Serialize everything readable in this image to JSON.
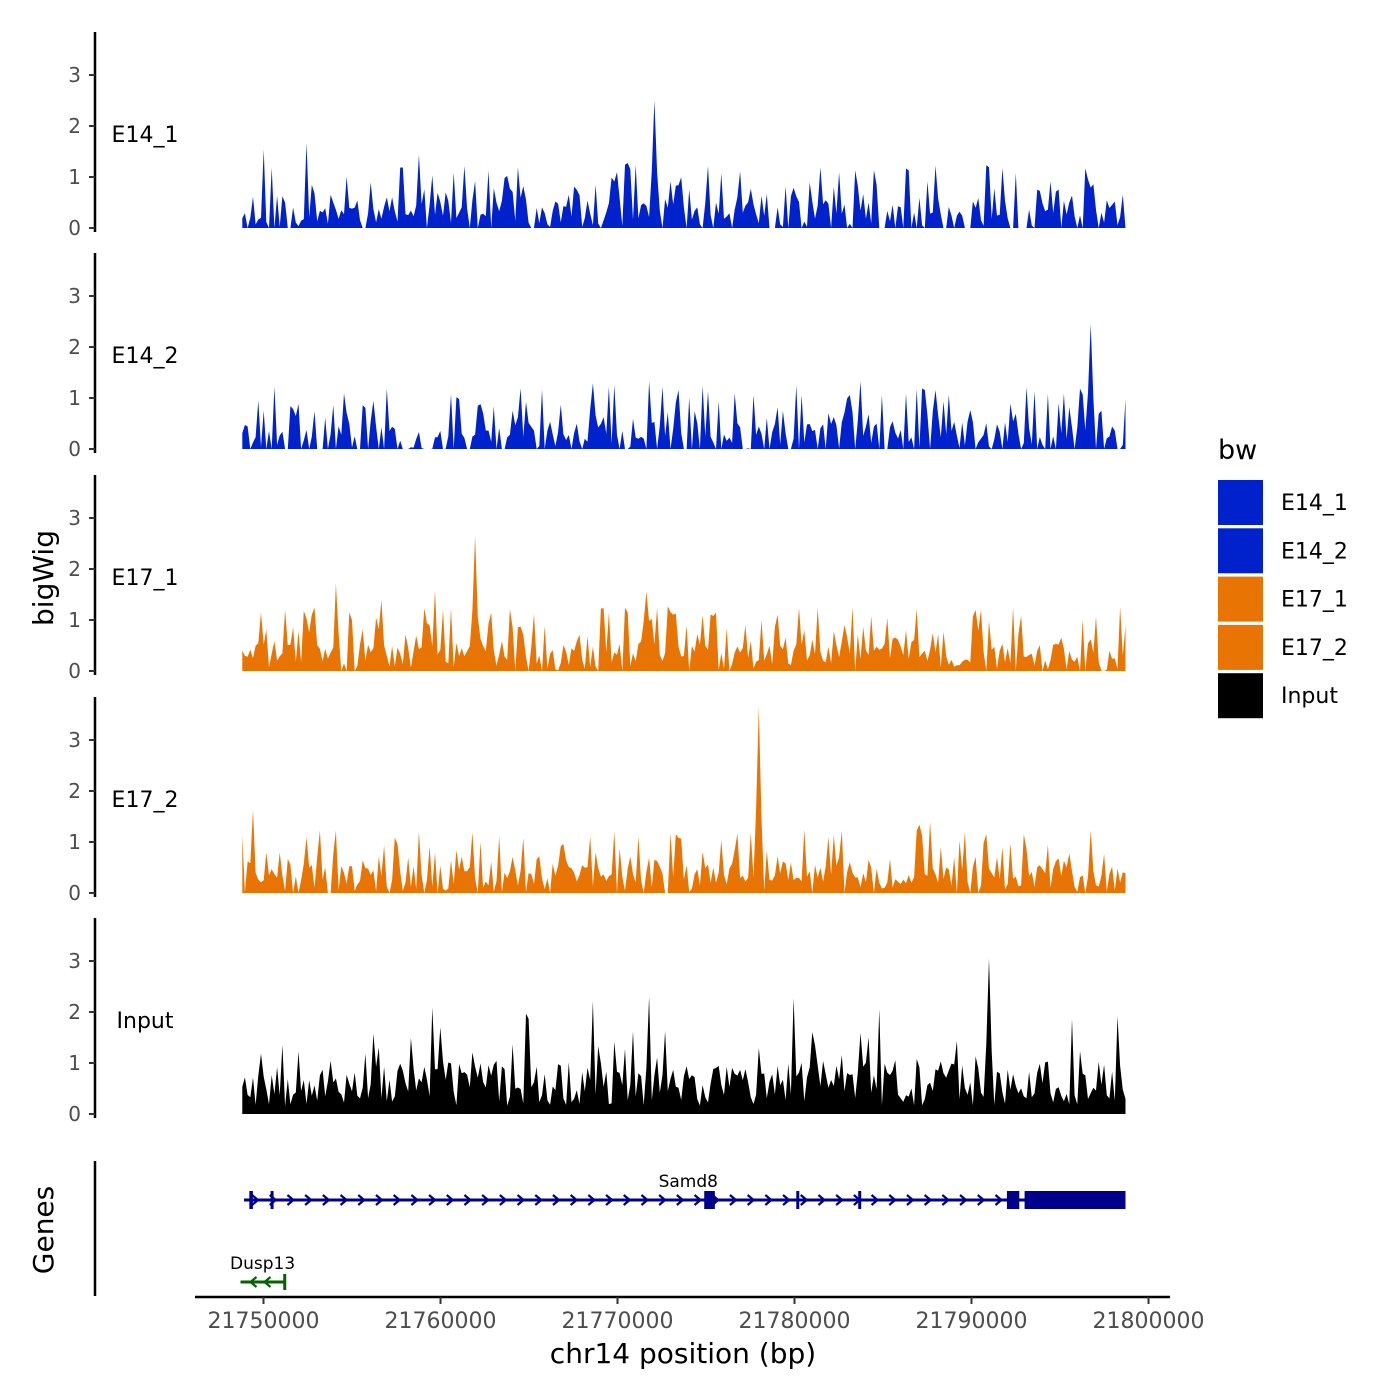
{
  "chart_data": {
    "type": "area",
    "title": "",
    "xlabel": "chr14 position (bp)",
    "ylabel": "bigWig",
    "gene_panel_label": "Genes",
    "x_range": [
      21746000,
      21801000
    ],
    "x_ticks": [
      21750000,
      21760000,
      21770000,
      21780000,
      21790000,
      21800000
    ],
    "x_tick_labels": [
      "21750000",
      "21760000",
      "21770000",
      "21780000",
      "21790000",
      "21800000"
    ],
    "y_range": [
      0,
      3.9
    ],
    "y_ticks": [
      0,
      1,
      2,
      3
    ],
    "y_tick_labels": [
      "0",
      "1",
      "2",
      "3"
    ],
    "data_x_range": [
      21748800,
      21798700
    ],
    "legend": {
      "title": "bw",
      "position": "right",
      "entries": [
        {
          "label": "E14_1",
          "color": "#0022CC"
        },
        {
          "label": "E14_2",
          "color": "#0022CC"
        },
        {
          "label": "E17_1",
          "color": "#E87503"
        },
        {
          "label": "E17_2",
          "color": "#E87503"
        },
        {
          "label": "Input",
          "color": "#000000"
        }
      ]
    },
    "series": [
      {
        "name": "E14_1",
        "color": "#0022CC",
        "max": 2.5,
        "peak_position": 21772100,
        "seed": 11,
        "zero_prob": 0.18
      },
      {
        "name": "E14_2",
        "color": "#0022CC",
        "max": 2.45,
        "peak_position": 21796700,
        "seed": 23,
        "zero_prob": 0.2
      },
      {
        "name": "E17_1",
        "color": "#E87503",
        "max": 2.65,
        "peak_position": 21761900,
        "seed": 37,
        "zero_prob": 0.05
      },
      {
        "name": "E17_2",
        "color": "#E87503",
        "max": 3.65,
        "peak_position": 21778000,
        "seed": 41,
        "zero_prob": 0.05
      },
      {
        "name": "Input",
        "color": "#000000",
        "max": 3.05,
        "peak_position": 21791000,
        "seed": 53,
        "zero_prob": 0.0
      }
    ],
    "genes": [
      {
        "name": "Samd8",
        "strand": "+",
        "color": "#00008B",
        "start": 21748900,
        "end": 21798700,
        "exons": [
          {
            "start": 21749200,
            "end": 21749400
          },
          {
            "start": 21750400,
            "end": 21750500
          },
          {
            "start": 21774900,
            "end": 21775500
          },
          {
            "start": 21780100,
            "end": 21780200
          },
          {
            "start": 21783600,
            "end": 21783700
          },
          {
            "start": 21792000,
            "end": 21792700
          },
          {
            "start": 21793000,
            "end": 21798700
          }
        ]
      },
      {
        "name": "Dusp13",
        "strand": "-",
        "color": "#006400",
        "start": 21748700,
        "end": 21751200,
        "exons": []
      }
    ]
  }
}
